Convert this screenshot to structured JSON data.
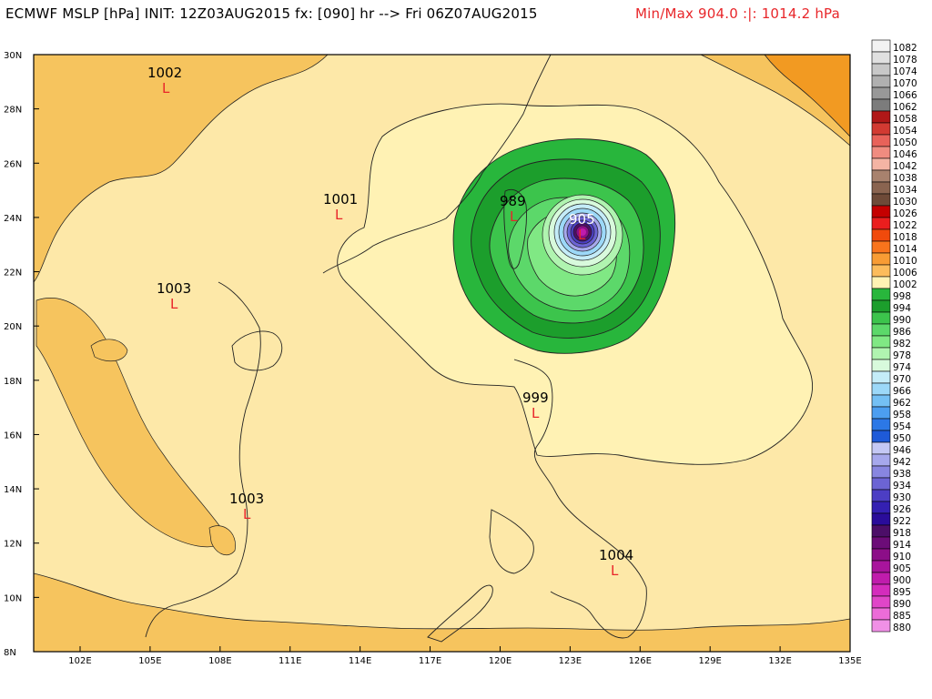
{
  "header": {
    "title": "ECMWF MSLP [hPa] INIT: 12Z03AUG2015 fx: [090] hr --> Fri 06Z07AUG2015",
    "minmax": "Min/Max 904.0 :|: 1014.2 hPa"
  },
  "colors": {
    "ring_998": "#27a83e",
    "ring_994": "#19962a",
    "ring_990": "#3cbc4c",
    "ring_986": "#5bd16a",
    "ring_982": "#8fea8f",
    "core_blue": "#6a7ad6",
    "core_purple": "#6a3a8a",
    "bg_1006": "#fde8a8",
    "bg_1010": "#f6c45e",
    "bg_1014": "#f29a22"
  },
  "axes": {
    "lat_labels": [
      "30N",
      "28N",
      "26N",
      "24N",
      "22N",
      "20N",
      "18N",
      "16N",
      "14N",
      "12N",
      "10N",
      "8N"
    ],
    "lon_labels": [
      "102E",
      "105E",
      "108E",
      "111E",
      "114E",
      "117E",
      "120E",
      "123E",
      "126E",
      "129E",
      "132E",
      "135E"
    ]
  },
  "pressure_labels": [
    {
      "text": "1002"
    },
    {
      "text": "1001"
    },
    {
      "text": "1003"
    },
    {
      "text": "989"
    },
    {
      "text": "905"
    },
    {
      "text": "999"
    },
    {
      "text": "1003"
    },
    {
      "text": "1004"
    }
  ],
  "low_marker": "L",
  "legend": {
    "levels": [
      "1082",
      "1078",
      "1074",
      "1070",
      "1066",
      "1062",
      "1058",
      "1054",
      "1050",
      "1046",
      "1042",
      "1038",
      "1034",
      "1030",
      "1026",
      "1022",
      "1018",
      "1014",
      "1010",
      "1006",
      "1002",
      "998",
      "994",
      "990",
      "986",
      "982",
      "978",
      "974",
      "970",
      "966",
      "962",
      "958",
      "954",
      "950",
      "946",
      "942",
      "938",
      "934",
      "930",
      "926",
      "922",
      "918",
      "914",
      "910",
      "905",
      "900",
      "895",
      "890",
      "885",
      "880"
    ],
    "colors": [
      "#f2f2f2",
      "#e0e0e0",
      "#c8c8c8",
      "#b0b0b0",
      "#989898",
      "#7c7c7c",
      "#b01818",
      "#d23a32",
      "#e8625a",
      "#f08c80",
      "#f4b4a4",
      "#a8826e",
      "#8a6450",
      "#6e4a38",
      "#c40000",
      "#ea1e1e",
      "#f04a0c",
      "#f8741c",
      "#f89c34",
      "#fcbc5c",
      "#fff2b4",
      "#28b63c",
      "#1c9e2c",
      "#3cc44c",
      "#5cd86a",
      "#80e884",
      "#b0f4b0",
      "#d8fadc",
      "#c4ecf8",
      "#9cd8f8",
      "#74c0f4",
      "#4c9ef0",
      "#2c78e6",
      "#1e5ad8",
      "#c4c8f4",
      "#a6a8ec",
      "#8886e0",
      "#6c64d4",
      "#4c3ec4",
      "#3420b2",
      "#2a0c9a",
      "#4c0e68",
      "#6c0c78",
      "#8c0e88",
      "#a8149c",
      "#c01cac",
      "#d42cbc",
      "#e046c8",
      "#ec6cd8",
      "#f090e6"
    ]
  }
}
